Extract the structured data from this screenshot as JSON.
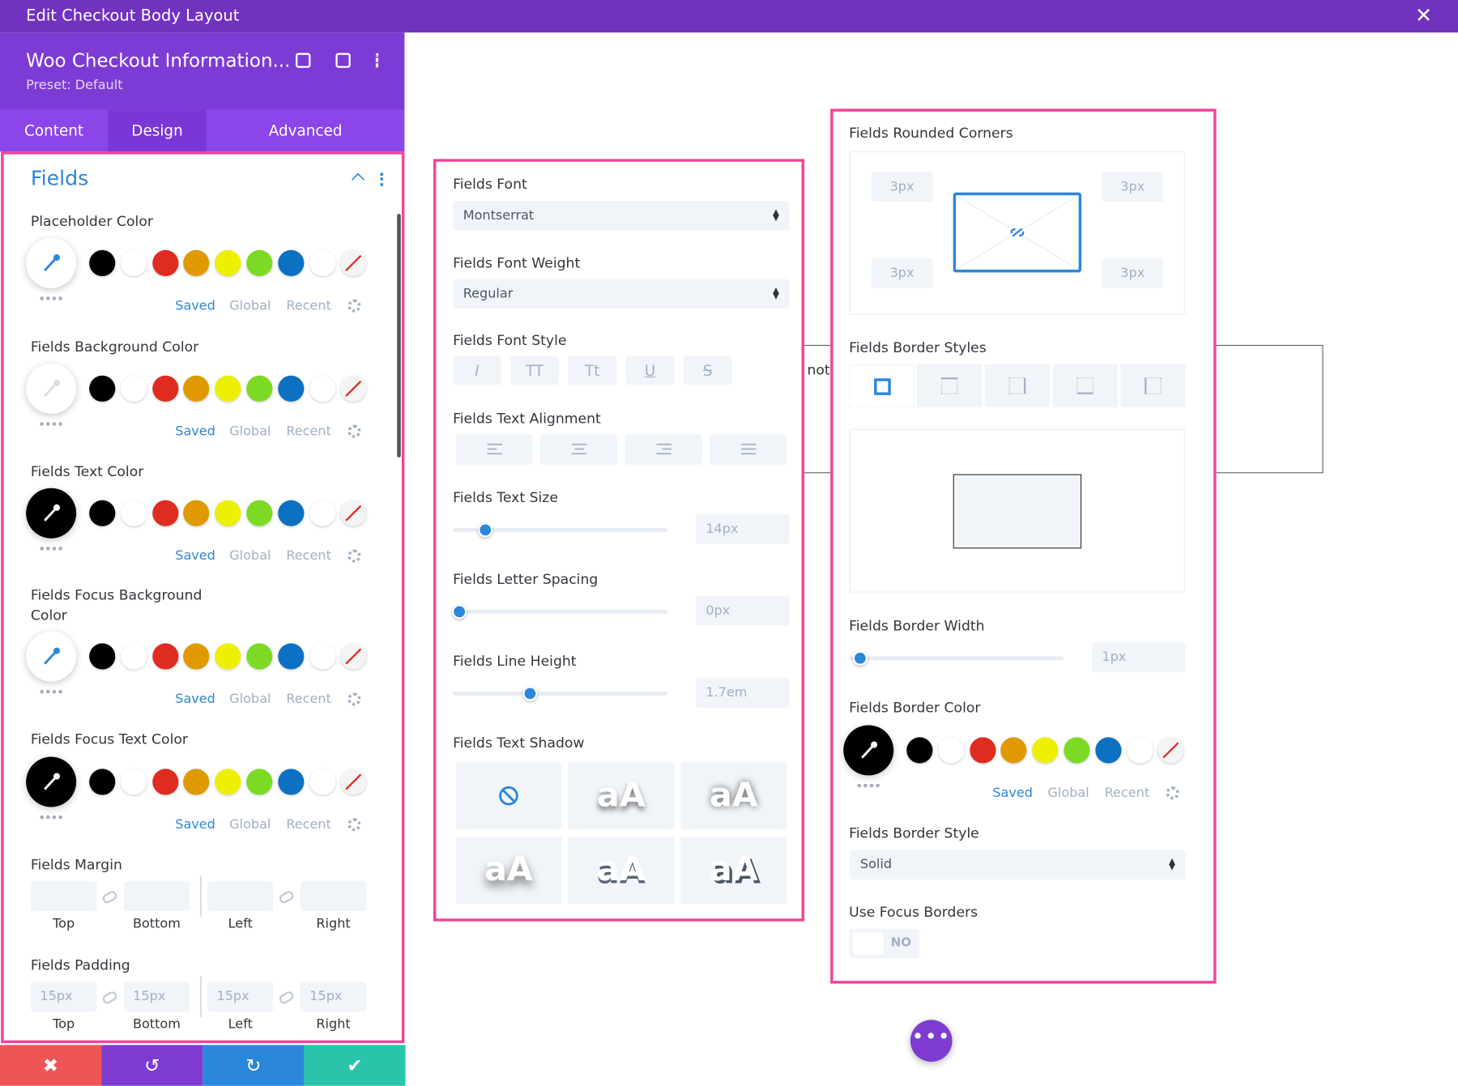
{
  "header": {
    "title": "Edit Checkout Body Layout"
  },
  "module": {
    "title": "Woo Checkout Information...",
    "preset": "Preset: Default"
  },
  "tabs": [
    "Content",
    "Design",
    "Advanced"
  ],
  "section": {
    "title": "Fields"
  },
  "palette_tabs": [
    "Saved",
    "Global",
    "Recent"
  ],
  "color_fields": [
    "Placeholder Color",
    "Fields Background Color",
    "Fields Text Color",
    "Fields Focus Background Color",
    "Fields Focus Text Color"
  ],
  "margin": {
    "label": "Fields Margin",
    "sides": [
      "Top",
      "Bottom",
      "Left",
      "Right"
    ]
  },
  "padding": {
    "label": "Fields Padding",
    "values": [
      "15px",
      "15px",
      "15px",
      "15px"
    ]
  },
  "font": {
    "label": "Fields Font",
    "value": "Montserrat"
  },
  "font_weight": {
    "label": "Fields Font Weight",
    "value": "Regular"
  },
  "font_style": {
    "label": "Fields Font Style",
    "options": [
      "I",
      "TT",
      "Tt",
      "U",
      "S"
    ]
  },
  "text_alignment": {
    "label": "Fields Text Alignment"
  },
  "text_size": {
    "label": "Fields Text Size",
    "value": "14px"
  },
  "letter_spacing": {
    "label": "Fields Letter Spacing",
    "value": "0px"
  },
  "line_height": {
    "label": "Fields Line Height",
    "value": "1.7em"
  },
  "text_shadow": {
    "label": "Fields Text Shadow",
    "sample": "aA"
  },
  "rounded_corners": {
    "label": "Fields Rounded Corners",
    "values": [
      "3px",
      "3px",
      "3px",
      "3px"
    ]
  },
  "border_styles": {
    "label": "Fields Border Styles"
  },
  "border_width": {
    "label": "Fields Border Width",
    "value": "1px"
  },
  "border_color": {
    "label": "Fields Border Color"
  },
  "border_style": {
    "label": "Fields Border Style",
    "value": "Solid"
  },
  "focus_borders": {
    "label": "Use Focus Borders",
    "value": "NO"
  },
  "background": {
    "text": "not"
  }
}
